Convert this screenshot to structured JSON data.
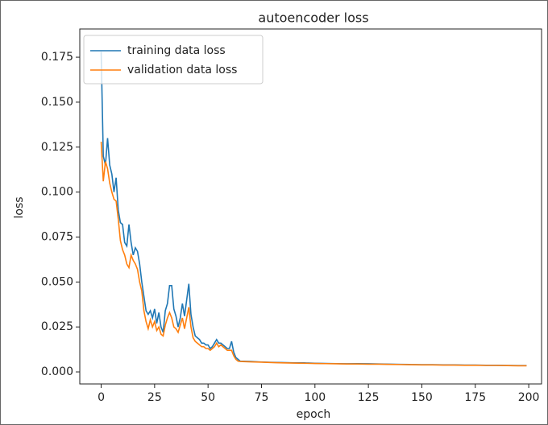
{
  "chart_data": {
    "type": "line",
    "title": "autoencoder loss",
    "xlabel": "epoch",
    "ylabel": "loss",
    "x": [
      0,
      1,
      2,
      3,
      4,
      5,
      6,
      7,
      8,
      9,
      10,
      11,
      12,
      13,
      14,
      15,
      16,
      17,
      18,
      19,
      20,
      21,
      22,
      23,
      24,
      25,
      26,
      27,
      28,
      29,
      30,
      31,
      32,
      33,
      34,
      35,
      36,
      37,
      38,
      39,
      40,
      41,
      42,
      43,
      44,
      45,
      46,
      47,
      48,
      49,
      50,
      51,
      52,
      53,
      54,
      55,
      56,
      57,
      58,
      59,
      60,
      61,
      62,
      63,
      64,
      65,
      70,
      75,
      80,
      85,
      90,
      95,
      100,
      105,
      110,
      115,
      120,
      125,
      130,
      135,
      140,
      145,
      150,
      155,
      160,
      165,
      170,
      175,
      180,
      185,
      190,
      195,
      199
    ],
    "series": [
      {
        "name": "training data loss",
        "color": "#1f77b4",
        "values": [
          0.178,
          0.12,
          0.115,
          0.13,
          0.115,
          0.11,
          0.1,
          0.108,
          0.09,
          0.083,
          0.082,
          0.072,
          0.07,
          0.082,
          0.072,
          0.065,
          0.069,
          0.067,
          0.06,
          0.05,
          0.042,
          0.034,
          0.032,
          0.034,
          0.03,
          0.035,
          0.027,
          0.033,
          0.025,
          0.022,
          0.034,
          0.038,
          0.048,
          0.048,
          0.035,
          0.031,
          0.025,
          0.03,
          0.038,
          0.031,
          0.04,
          0.049,
          0.032,
          0.025,
          0.02,
          0.019,
          0.018,
          0.016,
          0.016,
          0.015,
          0.015,
          0.013,
          0.014,
          0.016,
          0.018,
          0.016,
          0.016,
          0.015,
          0.014,
          0.013,
          0.013,
          0.017,
          0.011,
          0.008,
          0.007,
          0.006,
          0.0058,
          0.0055,
          0.0053,
          0.0052,
          0.005,
          0.005,
          0.0048,
          0.0047,
          0.0046,
          0.0045,
          0.0046,
          0.0045,
          0.0044,
          0.0043,
          0.0042,
          0.0041,
          0.004,
          0.004,
          0.0039,
          0.0039,
          0.0038,
          0.0038,
          0.0037,
          0.0037,
          0.0036,
          0.0035,
          0.0035
        ]
      },
      {
        "name": "validation data loss",
        "color": "#ff7f0e",
        "values": [
          0.128,
          0.106,
          0.117,
          0.113,
          0.105,
          0.1,
          0.096,
          0.095,
          0.085,
          0.073,
          0.068,
          0.065,
          0.06,
          0.058,
          0.065,
          0.062,
          0.06,
          0.057,
          0.05,
          0.045,
          0.034,
          0.028,
          0.024,
          0.029,
          0.025,
          0.028,
          0.023,
          0.025,
          0.021,
          0.02,
          0.026,
          0.03,
          0.033,
          0.03,
          0.025,
          0.024,
          0.022,
          0.026,
          0.03,
          0.024,
          0.03,
          0.036,
          0.025,
          0.019,
          0.017,
          0.016,
          0.015,
          0.014,
          0.014,
          0.013,
          0.013,
          0.012,
          0.013,
          0.014,
          0.016,
          0.014,
          0.015,
          0.014,
          0.013,
          0.012,
          0.012,
          0.012,
          0.009,
          0.007,
          0.006,
          0.0058,
          0.0056,
          0.0054,
          0.0052,
          0.005,
          0.0049,
          0.0048,
          0.0047,
          0.0046,
          0.0045,
          0.0044,
          0.0044,
          0.0043,
          0.0043,
          0.0042,
          0.0041,
          0.004,
          0.0039,
          0.0039,
          0.0038,
          0.0038,
          0.0037,
          0.0037,
          0.0036,
          0.0036,
          0.0035,
          0.0034,
          0.0034
        ]
      }
    ],
    "xlim": [
      -10,
      206
    ],
    "xticks": [
      0,
      25,
      50,
      75,
      100,
      125,
      150,
      175,
      200
    ],
    "ylim": [
      -0.0067,
      0.1907
    ],
    "yticks": [
      {
        "value": 0,
        "label": "0.000"
      },
      0.025,
      {
        "value": 0.05,
        "label": "0.050"
      },
      0.075,
      {
        "value": 0.1,
        "label": "0.100"
      },
      0.125,
      {
        "value": 0.15,
        "label": "0.150"
      },
      0.175
    ],
    "legend": "upper left"
  }
}
